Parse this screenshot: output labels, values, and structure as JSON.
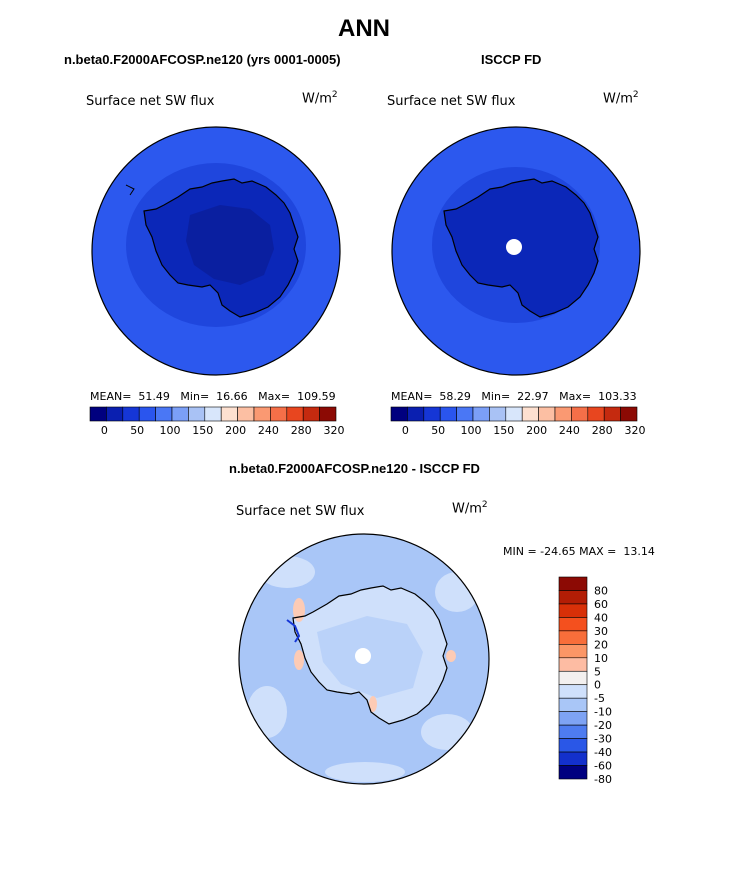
{
  "page_title": "ANN",
  "panels": [
    {
      "case_name": "n.beta0.F2000AFCOSP.ne120 (yrs 0001-0005)",
      "variable": "Surface net SW flux",
      "units": "W/m",
      "units_sup": "2",
      "stats": {
        "mean_label": "MEAN=",
        "mean": "51.49",
        "min_label": "Min=",
        "min": "16.66",
        "max_label": "Max=",
        "max": "109.59"
      },
      "colorbar_ticks": [
        "0",
        "50",
        "100",
        "150",
        "200",
        "240",
        "280",
        "320"
      ]
    },
    {
      "case_name": "ISCCP FD",
      "variable": "Surface net SW flux",
      "units": "W/m",
      "units_sup": "2",
      "stats": {
        "mean_label": "MEAN=",
        "mean": "58.29",
        "min_label": "Min=",
        "min": "22.97",
        "max_label": "Max=",
        "max": "103.33"
      },
      "colorbar_ticks": [
        "0",
        "50",
        "100",
        "150",
        "200",
        "240",
        "280",
        "320"
      ]
    }
  ],
  "diff_panel": {
    "title": "n.beta0.F2000AFCOSP.ne120 - ISCCP FD",
    "variable": "Surface net SW flux",
    "units": "W/m",
    "units_sup": "2",
    "minmax": "MIN = -24.65 MAX =  13.14",
    "colorbar_labels": [
      "80",
      "60",
      "40",
      "30",
      "20",
      "10",
      "5",
      "0",
      "-5",
      "-10",
      "-20",
      "-30",
      "-40",
      "-60",
      "-80"
    ]
  },
  "colors": {
    "abs_scale": [
      "#00007f",
      "#0a1fb0",
      "#1536d6",
      "#2a55ee",
      "#4a77f5",
      "#7b9ff7",
      "#a9c2f5",
      "#d8e6fb",
      "#fde0d0",
      "#fcbfa3",
      "#fa9972",
      "#f56f48",
      "#e8461f",
      "#c52a0f",
      "#8c0a04"
    ],
    "diff_scale": [
      "#8c0a04",
      "#b31d05",
      "#d83008",
      "#f4501e",
      "#f86e3a",
      "#fb9666",
      "#fdbca3",
      "#f3f0ef",
      "#cfe0fb",
      "#a9c6f7",
      "#7ea3f4",
      "#4e7cf0",
      "#2a57e7",
      "#1330cc",
      "#000080"
    ],
    "ocean_abs": "#2c58ee",
    "ocean_abs_inner": "#1f46dd",
    "land_abs": "#0b27b8",
    "land_abs_deep": "#0a1fa0",
    "diff_base": "#a9c6f7",
    "diff_light": "#cfe0fb",
    "diff_warm": "#fdcbb5"
  }
}
